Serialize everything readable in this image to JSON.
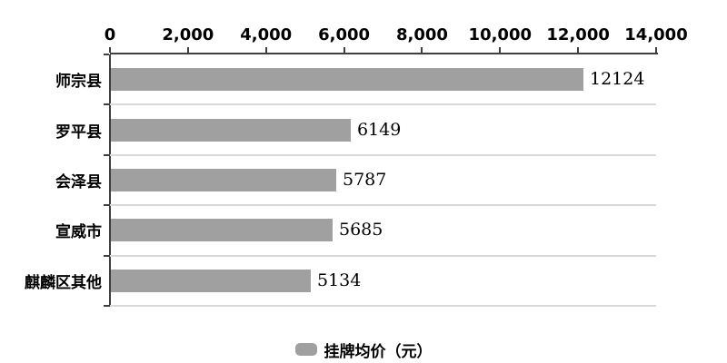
{
  "chart_data": {
    "type": "bar",
    "orientation": "horizontal",
    "title": "",
    "categories": [
      "师宗县",
      "罗平县",
      "会泽县",
      "宣威市",
      "麒麟区其他"
    ],
    "series": [
      {
        "name": "挂牌均价（元）",
        "values": [
          12124,
          6149,
          5787,
          5685,
          5134
        ]
      }
    ],
    "value_labels": [
      "12124",
      "6149",
      "5787",
      "5685",
      "5134"
    ],
    "x_axis": {
      "position": "top",
      "min": 0,
      "max": 14000,
      "tick_interval": 2000,
      "tick_labels": [
        "0",
        "2,000",
        "4,000",
        "6,000",
        "8,000",
        "10,000",
        "12,000",
        "14,000"
      ]
    },
    "y_axis": {
      "position": "left",
      "row_separator_gridlines": true
    },
    "legend": {
      "position": "bottom",
      "items": [
        {
          "label": "挂牌均价（元）",
          "swatch_color": "#a0a0a0"
        }
      ]
    },
    "colors": {
      "bar": "#a0a0a0",
      "axis": "#3f3f3f",
      "gridline": "#d9d9d9",
      "text": "#000000",
      "background": "#ffffff"
    }
  }
}
